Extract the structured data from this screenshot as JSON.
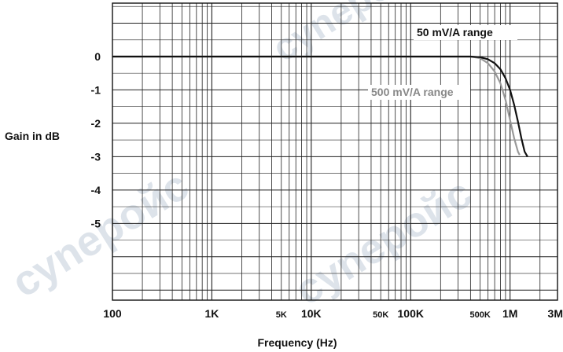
{
  "chart_data": {
    "type": "line",
    "title": "",
    "xlabel": "Frequency (Hz)",
    "ylabel": "Gain in dB",
    "x_scale": "log",
    "xlim": [
      100,
      3000000
    ],
    "ylim": [
      -7.3,
      1.6
    ],
    "grid": true,
    "x_ticks": [
      {
        "value": 100,
        "label": "100",
        "size": "large"
      },
      {
        "value": 1000,
        "label": "1K",
        "size": "large"
      },
      {
        "value": 5000,
        "label": "5K",
        "size": "small"
      },
      {
        "value": 10000,
        "label": "10K",
        "size": "large"
      },
      {
        "value": 50000,
        "label": "50K",
        "size": "small"
      },
      {
        "value": 100000,
        "label": "100K",
        "size": "large"
      },
      {
        "value": 500000,
        "label": "500K",
        "size": "small"
      },
      {
        "value": 1000000,
        "label": "1M",
        "size": "large"
      },
      {
        "value": 3000000,
        "label": "3M",
        "size": "large"
      }
    ],
    "y_ticks": [
      {
        "value": 0,
        "label": "0"
      },
      {
        "value": -1,
        "label": "-1"
      },
      {
        "value": -2,
        "label": "-2"
      },
      {
        "value": -3,
        "label": "-3"
      },
      {
        "value": -4,
        "label": "-4"
      },
      {
        "value": -5,
        "label": "-5"
      }
    ],
    "series": [
      {
        "name": "50 mV/A range",
        "color": "#111111",
        "x": [
          100,
          100000,
          300000,
          400000,
          500000,
          600000,
          700000,
          800000,
          900000,
          1000000,
          1100000,
          1200000,
          1300000,
          1400000,
          1500000
        ],
        "y": [
          0,
          0,
          0,
          0,
          -0.02,
          -0.08,
          -0.2,
          -0.38,
          -0.65,
          -1.0,
          -1.45,
          -1.95,
          -2.45,
          -2.85,
          -3.0
        ]
      },
      {
        "name": "500 mV/A range",
        "color": "#999999",
        "x": [
          100,
          100000,
          300000,
          400000,
          500000,
          600000,
          700000,
          800000,
          900000,
          1000000,
          1100000,
          1200000,
          1250000
        ],
        "y": [
          0,
          0,
          0,
          0,
          -0.05,
          -0.2,
          -0.45,
          -0.8,
          -1.3,
          -1.9,
          -2.45,
          -2.85,
          -2.95
        ]
      }
    ],
    "annotations": [
      {
        "text": "50 mV/A range",
        "series": 0
      },
      {
        "text": "500 mV/A range",
        "series": 1
      }
    ]
  }
}
